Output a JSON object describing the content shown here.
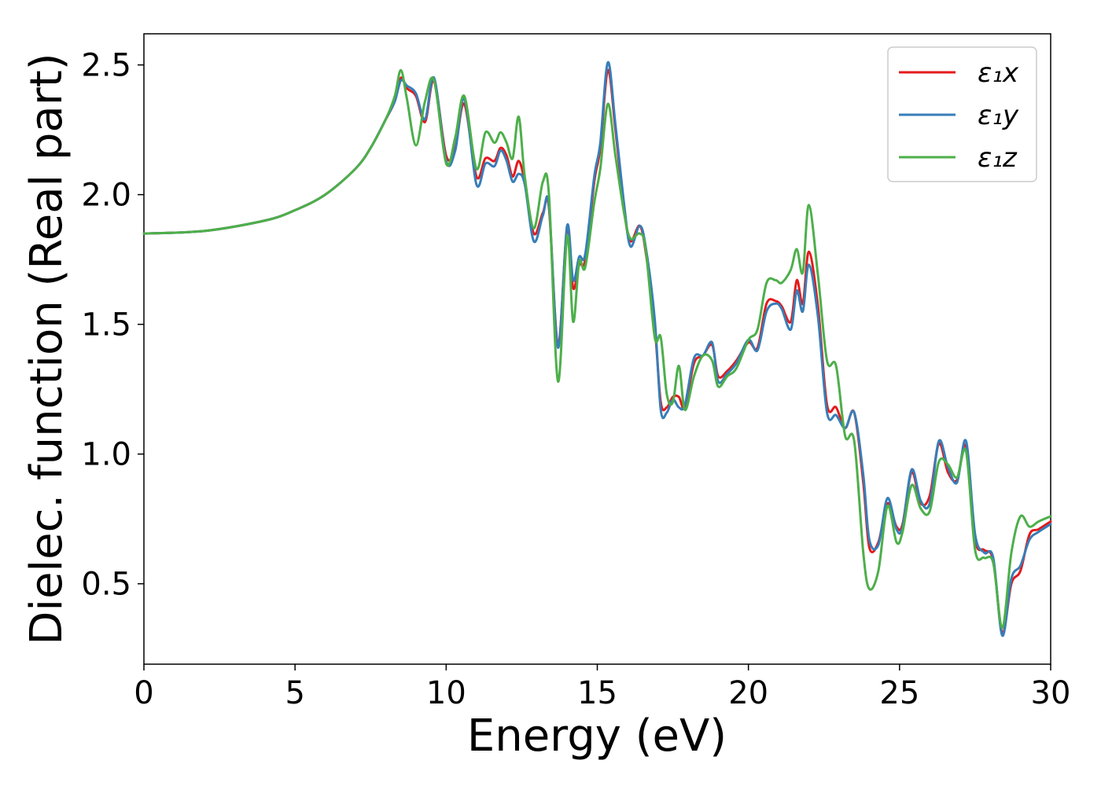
{
  "chart_data": {
    "type": "line",
    "xlabel": "Energy (eV)",
    "ylabel": "Dielec. function (Real part)",
    "xlim": [
      0,
      30
    ],
    "ylim": [
      0.19,
      2.62
    ],
    "xticks": [
      "0",
      "5",
      "10",
      "15",
      "20",
      "25",
      "30"
    ],
    "yticks": [
      "0.5",
      "1.0",
      "1.5",
      "2.0",
      "2.5"
    ],
    "legend_position": "top-right",
    "grid": false,
    "series": [
      {
        "name": "ε₁x",
        "color": "#e41a1c",
        "x": [
          0,
          2,
          4,
          5,
          6,
          7,
          7.5,
          8,
          8.3,
          8.5,
          8.7,
          9.0,
          9.3,
          9.6,
          10.0,
          10.3,
          10.6,
          11.0,
          11.3,
          11.6,
          11.8,
          12.0,
          12.2,
          12.4,
          12.6,
          12.9,
          13.2,
          13.4,
          13.7,
          14.0,
          14.2,
          14.4,
          14.6,
          14.9,
          15.1,
          15.35,
          15.6,
          15.9,
          16.1,
          16.4,
          16.6,
          16.9,
          17.1,
          17.3,
          17.5,
          17.7,
          17.9,
          18.2,
          18.5,
          18.8,
          19.0,
          19.3,
          19.6,
          20.0,
          20.3,
          20.6,
          20.9,
          21.1,
          21.4,
          21.6,
          21.8,
          22.0,
          22.3,
          22.6,
          22.9,
          23.2,
          23.5,
          23.8,
          24.0,
          24.3,
          24.6,
          24.9,
          25.1,
          25.4,
          25.7,
          26.0,
          26.3,
          26.6,
          26.9,
          27.2,
          27.5,
          27.8,
          28.1,
          28.4,
          28.7,
          29.0,
          29.3,
          29.6,
          30.0
        ],
        "y": [
          1.85,
          1.86,
          1.9,
          1.94,
          2.0,
          2.1,
          2.18,
          2.29,
          2.36,
          2.45,
          2.41,
          2.38,
          2.28,
          2.44,
          2.15,
          2.18,
          2.35,
          2.07,
          2.14,
          2.13,
          2.18,
          2.15,
          2.07,
          2.13,
          2.05,
          1.85,
          1.93,
          1.95,
          1.42,
          1.87,
          1.64,
          1.73,
          1.75,
          2.05,
          2.18,
          2.48,
          2.25,
          1.93,
          1.82,
          1.88,
          1.78,
          1.49,
          1.2,
          1.18,
          1.22,
          1.22,
          1.18,
          1.35,
          1.38,
          1.42,
          1.3,
          1.32,
          1.36,
          1.43,
          1.41,
          1.58,
          1.59,
          1.57,
          1.51,
          1.67,
          1.58,
          1.78,
          1.57,
          1.19,
          1.18,
          1.1,
          1.16,
          0.89,
          0.64,
          0.66,
          0.81,
          0.72,
          0.73,
          0.93,
          0.81,
          0.84,
          1.04,
          0.93,
          0.9,
          1.03,
          0.67,
          0.63,
          0.59,
          0.31,
          0.5,
          0.55,
          0.69,
          0.71,
          0.74
        ]
      },
      {
        "name": "ε₁y",
        "color": "#377eb8",
        "x": [
          0,
          2,
          4,
          5,
          6,
          7,
          7.5,
          8,
          8.3,
          8.5,
          8.7,
          9.0,
          9.3,
          9.6,
          10.0,
          10.3,
          10.6,
          11.0,
          11.3,
          11.6,
          11.8,
          12.0,
          12.2,
          12.4,
          12.6,
          12.9,
          13.2,
          13.4,
          13.7,
          14.0,
          14.2,
          14.4,
          14.6,
          14.9,
          15.1,
          15.35,
          15.6,
          15.9,
          16.1,
          16.4,
          16.6,
          16.9,
          17.1,
          17.3,
          17.5,
          17.7,
          17.9,
          18.2,
          18.5,
          18.8,
          19.0,
          19.3,
          19.6,
          20.0,
          20.3,
          20.6,
          20.9,
          21.1,
          21.4,
          21.6,
          21.8,
          22.0,
          22.3,
          22.6,
          22.9,
          23.2,
          23.5,
          23.8,
          24.0,
          24.3,
          24.6,
          24.9,
          25.1,
          25.4,
          25.7,
          26.0,
          26.3,
          26.6,
          26.9,
          27.2,
          27.5,
          27.8,
          28.1,
          28.4,
          28.7,
          29.0,
          29.3,
          29.6,
          30.0
        ],
        "y": [
          1.85,
          1.86,
          1.9,
          1.94,
          2.0,
          2.1,
          2.18,
          2.29,
          2.36,
          2.44,
          2.42,
          2.39,
          2.29,
          2.45,
          2.13,
          2.17,
          2.37,
          2.04,
          2.12,
          2.11,
          2.17,
          2.13,
          2.05,
          2.08,
          2.04,
          1.82,
          1.92,
          1.96,
          1.41,
          1.88,
          1.67,
          1.76,
          1.77,
          2.07,
          2.2,
          2.51,
          2.27,
          1.95,
          1.8,
          1.88,
          1.8,
          1.52,
          1.17,
          1.16,
          1.21,
          1.18,
          1.19,
          1.37,
          1.38,
          1.43,
          1.28,
          1.31,
          1.35,
          1.44,
          1.4,
          1.55,
          1.58,
          1.56,
          1.48,
          1.63,
          1.55,
          1.73,
          1.53,
          1.16,
          1.15,
          1.1,
          1.16,
          0.92,
          0.67,
          0.65,
          0.83,
          0.71,
          0.72,
          0.94,
          0.82,
          0.81,
          1.05,
          0.95,
          0.89,
          1.05,
          0.69,
          0.62,
          0.6,
          0.3,
          0.52,
          0.57,
          0.67,
          0.7,
          0.73
        ]
      },
      {
        "name": "ε₁z",
        "color": "#4daf4a",
        "x": [
          0,
          2,
          4,
          5,
          6,
          7,
          7.5,
          8,
          8.3,
          8.5,
          8.7,
          9.0,
          9.3,
          9.6,
          10.0,
          10.3,
          10.6,
          11.0,
          11.3,
          11.6,
          11.8,
          12.0,
          12.2,
          12.4,
          12.6,
          12.9,
          13.2,
          13.4,
          13.7,
          14.0,
          14.2,
          14.4,
          14.6,
          14.9,
          15.1,
          15.35,
          15.6,
          15.9,
          16.1,
          16.4,
          16.6,
          16.9,
          17.1,
          17.3,
          17.5,
          17.7,
          17.9,
          18.2,
          18.5,
          18.8,
          19.0,
          19.3,
          19.6,
          20.0,
          20.3,
          20.6,
          20.9,
          21.1,
          21.4,
          21.6,
          21.8,
          22.0,
          22.3,
          22.6,
          22.9,
          23.2,
          23.5,
          23.8,
          24.0,
          24.3,
          24.6,
          24.9,
          25.1,
          25.4,
          25.7,
          26.0,
          26.3,
          26.6,
          26.9,
          27.2,
          27.5,
          27.8,
          28.1,
          28.4,
          28.7,
          29.0,
          29.3,
          29.6,
          30.0
        ],
        "y": [
          1.85,
          1.86,
          1.9,
          1.94,
          2.0,
          2.1,
          2.18,
          2.29,
          2.38,
          2.48,
          2.37,
          2.19,
          2.36,
          2.44,
          2.12,
          2.22,
          2.38,
          2.1,
          2.24,
          2.2,
          2.24,
          2.2,
          2.14,
          2.3,
          2.07,
          1.87,
          2.05,
          2.0,
          1.28,
          1.84,
          1.51,
          1.74,
          1.72,
          1.97,
          2.1,
          2.35,
          2.15,
          1.92,
          1.83,
          1.85,
          1.79,
          1.45,
          1.45,
          1.23,
          1.2,
          1.34,
          1.17,
          1.3,
          1.38,
          1.36,
          1.26,
          1.3,
          1.33,
          1.44,
          1.48,
          1.66,
          1.67,
          1.66,
          1.71,
          1.79,
          1.7,
          1.96,
          1.69,
          1.36,
          1.34,
          1.07,
          1.05,
          0.62,
          0.48,
          0.55,
          0.8,
          0.66,
          0.7,
          0.88,
          0.79,
          0.78,
          0.97,
          0.96,
          0.91,
          1.01,
          0.63,
          0.6,
          0.58,
          0.33,
          0.62,
          0.76,
          0.72,
          0.74,
          0.76
        ]
      }
    ]
  }
}
